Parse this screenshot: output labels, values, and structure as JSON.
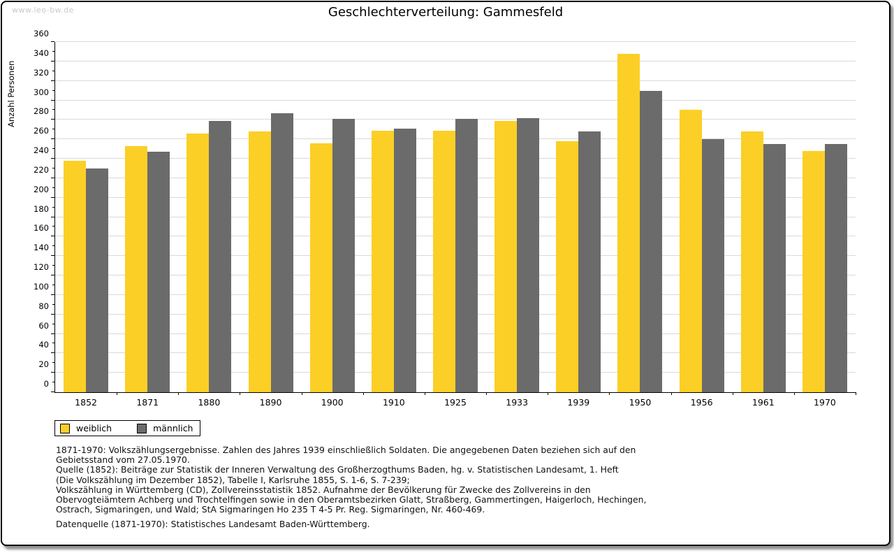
{
  "watermark": "www.leo-bw.de",
  "header": {
    "title": "Geschlechterverteilung: Gammesfeld"
  },
  "chart_data": {
    "type": "bar",
    "title": "Geschlechterverteilung: Gammesfeld",
    "xlabel": "",
    "ylabel": "Anzahl Personen",
    "categories": [
      "1852",
      "1871",
      "1880",
      "1890",
      "1900",
      "1910",
      "1925",
      "1933",
      "1939",
      "1950",
      "1956",
      "1961",
      "1970"
    ],
    "series": [
      {
        "name": "weiblich",
        "color": "#FBCF26",
        "values": [
          238,
          253,
          266,
          268,
          256,
          269,
          269,
          279,
          258,
          348,
          290,
          268,
          248
        ]
      },
      {
        "name": "männlich",
        "color": "#6B6B6B",
        "values": [
          230,
          247,
          279,
          287,
          281,
          271,
          281,
          282,
          268,
          310,
          260,
          255,
          255
        ]
      }
    ],
    "ylim": [
      0,
      360
    ],
    "ytick_step": 20,
    "yminor_step": 10,
    "grid": "horizontal",
    "legend_position": "bottom-left"
  },
  "footnotes": {
    "lines": [
      "1871-1970: Volkszählungsergebnisse. Zahlen des Jahres 1939 einschließlich Soldaten. Die angegebenen Daten beziehen sich auf den",
      "Gebietsstand vom 27.05.1970.",
      "Quelle (1852): Beiträge zur Statistik der Inneren Verwaltung des Großherzogthums Baden, hg. v. Statistischen Landesamt, 1. Heft",
      "(Die Volkszählung im Dezember 1852), Tabelle I, Karlsruhe 1855, S. 1-6, S. 7-239;",
      "Volkszählung in Württemberg (CD), Zollvereinsstatistik 1852. Aufnahme der Bevölkerung für Zwecke des Zollvereins in den",
      "Obervogteiämtern Achberg und Trochtelfingen sowie in den Oberamtsbezirken Glatt, Straßberg, Gammertingen, Haigerloch, Hechingen,",
      "Ostrach, Sigmaringen, und Wald; StA Sigmaringen Ho 235 T 4-5 Pr. Reg. Sigmaringen, Nr. 460-469."
    ],
    "datasource": "Datenquelle (1871-1970): Statistisches Landesamt Baden-Württemberg."
  },
  "colors": {
    "background": "#FFFFFF",
    "border": "#000000",
    "grid": "#D9D9D9",
    "axis": "#000000",
    "watermark": "#C9C9C9"
  }
}
